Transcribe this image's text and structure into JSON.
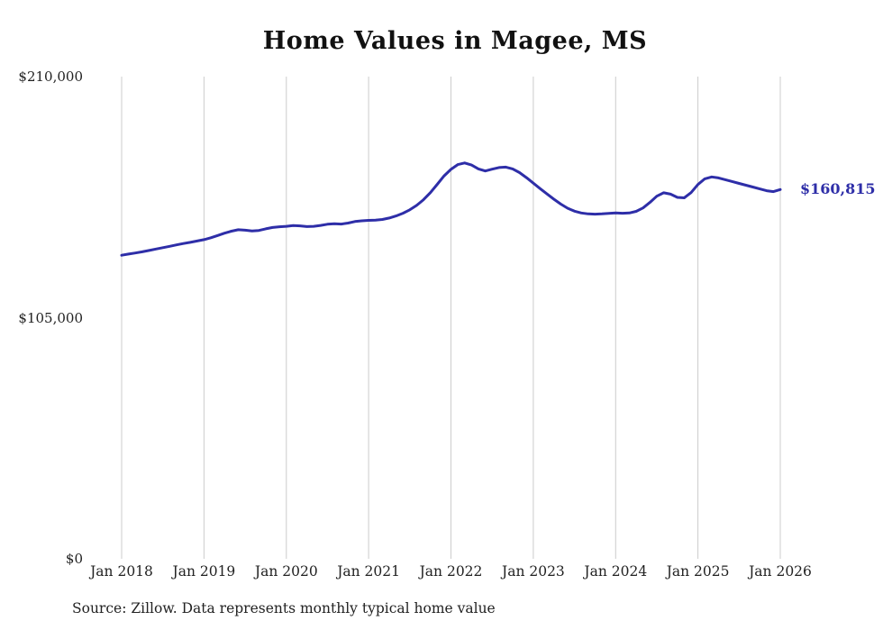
{
  "chart_data": {
    "type": "line",
    "title": "Home Values in Magee, MS",
    "source_note": "Source: Zillow. Data represents monthly typical home value",
    "end_label": "$160,815",
    "end_value": 160815,
    "line_color": "#2e2ea8",
    "grid_color": "#cccccc",
    "legend_position": "none",
    "grid": "vertical-only",
    "x_start": "Jan 2018",
    "x_end": "Jan 2026",
    "x_ticks": [
      "Jan 2018",
      "Jan 2019",
      "Jan 2020",
      "Jan 2021",
      "Jan 2022",
      "Jan 2023",
      "Jan 2024",
      "Jan 2025",
      "Jan 2026"
    ],
    "y_ticks": [
      "$0",
      "$105,000",
      "$210,000"
    ],
    "y_tick_values": [
      0,
      105000,
      210000
    ],
    "ylim": [
      0,
      210000
    ],
    "series_name": "Typical home value (monthly)",
    "values": [
      132200,
      132700,
      133200,
      133700,
      134300,
      134900,
      135500,
      136100,
      136700,
      137300,
      137800,
      138400,
      139000,
      139800,
      140800,
      141800,
      142700,
      143300,
      143100,
      142800,
      143000,
      143700,
      144300,
      144600,
      144800,
      145100,
      145000,
      144700,
      144800,
      145200,
      145700,
      145900,
      145800,
      146200,
      146900,
      147200,
      147400,
      147500,
      147800,
      148400,
      149300,
      150500,
      152000,
      153900,
      156400,
      159500,
      163100,
      166800,
      169600,
      171700,
      172400,
      171500,
      169800,
      168900,
      169700,
      170400,
      170600,
      169800,
      168200,
      166000,
      163600,
      161200,
      158900,
      156600,
      154500,
      152700,
      151400,
      150600,
      150200,
      150100,
      150200,
      150400,
      150600,
      150500,
      150600,
      151300,
      152800,
      155200,
      157900,
      159400,
      158800,
      157400,
      157200,
      159500,
      163000,
      165500,
      166300,
      165900,
      165100,
      164300,
      163500,
      162700,
      161900,
      161100,
      160300,
      159900,
      160815
    ]
  }
}
